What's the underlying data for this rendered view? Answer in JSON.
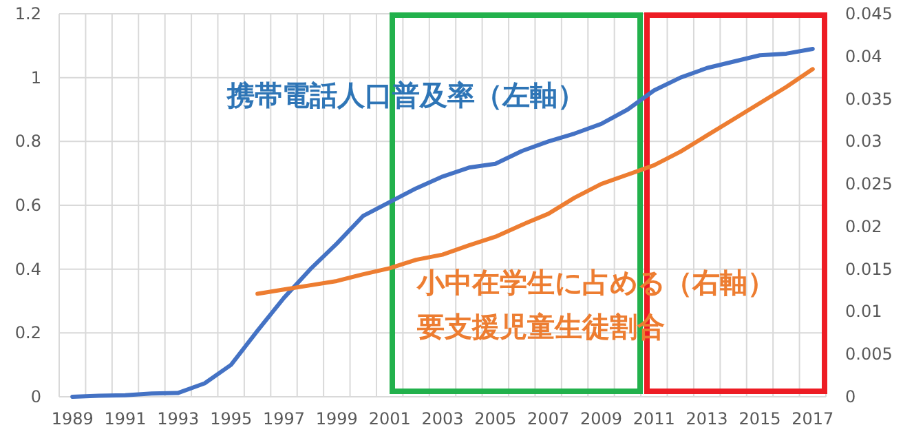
{
  "chart_data": {
    "type": "line",
    "categories": [
      "1989",
      null,
      "1991",
      null,
      "1993",
      null,
      "1995",
      null,
      "1997",
      null,
      "1999",
      null,
      "2001",
      null,
      "2003",
      null,
      "2005",
      null,
      "2007",
      null,
      "2009",
      null,
      "2011",
      null,
      "2013",
      null,
      "2015",
      null,
      "2017"
    ],
    "series": [
      {
        "name": "携帯電話人口普及率（左軸）",
        "color": "#4472c4",
        "values": [
          0.0,
          0.003,
          0.005,
          0.01,
          0.012,
          0.042,
          0.1,
          0.207,
          0.31,
          0.4,
          0.48,
          0.567,
          0.61,
          0.653,
          0.69,
          0.718,
          0.73,
          0.77,
          0.8,
          0.825,
          0.855,
          0.9,
          0.96,
          1.0,
          1.03,
          1.05,
          1.07,
          1.075,
          1.09
        ]
      },
      {
        "name": "小中在学生に占める（右軸）要支援児童生徒割合",
        "color": "#ed7d31",
        "axis": "y2",
        "values": [
          null,
          null,
          null,
          null,
          null,
          null,
          null,
          0.0121,
          0.0126,
          0.0131,
          0.0136,
          0.0144,
          0.0151,
          0.0161,
          0.0167,
          0.0178,
          0.0188,
          0.0202,
          0.0215,
          0.0234,
          0.025,
          0.0261,
          0.0272,
          0.0288,
          0.0307,
          0.0326,
          0.0345,
          0.0364,
          0.0385
        ]
      }
    ],
    "ylim": [
      0,
      1.2
    ],
    "yticks": [
      0,
      0.2,
      0.4,
      0.6,
      0.8,
      1,
      1.2
    ],
    "y2lim": [
      0,
      0.045
    ],
    "y2ticks": [
      0,
      0.005,
      0.01,
      0.015,
      0.02,
      0.025,
      0.03,
      0.035,
      0.04,
      0.045
    ],
    "grid": true,
    "legend": false,
    "line_style": "solid",
    "marker": "none"
  }
}
